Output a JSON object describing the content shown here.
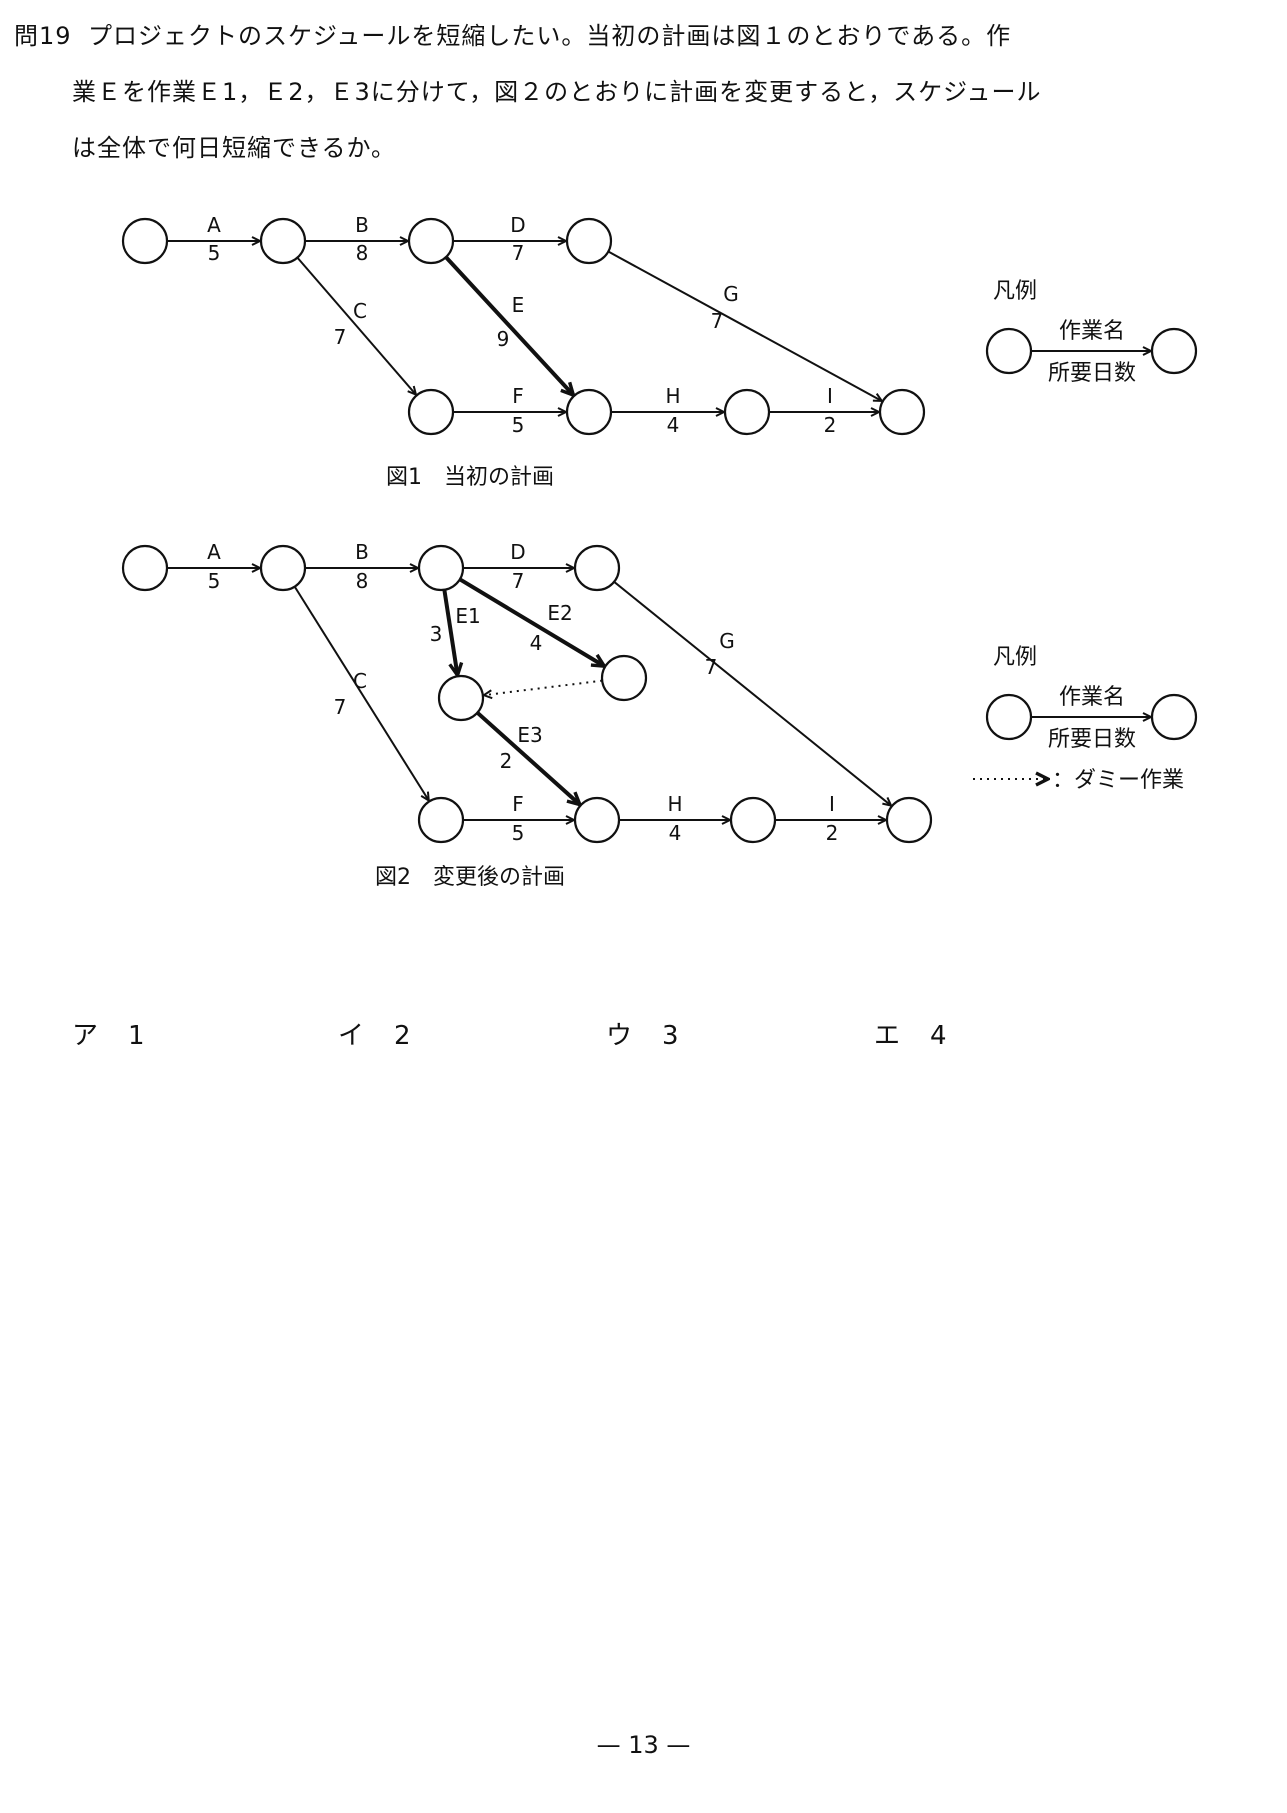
{
  "question": {
    "number": "問19",
    "lines": [
      "プロジェクトのスケジュールを短縮したい。当初の計画は図１のとおりである。作",
      "業Ｅを作業Ｅ1，Ｅ2，Ｅ3に分けて，図２のとおりに計画を変更すると，スケジュール",
      "は全体で何日短縮できるか。"
    ]
  },
  "figure1": {
    "caption": "図1　当初の計画",
    "activities": [
      {
        "id": "A",
        "name": "A",
        "days": "5"
      },
      {
        "id": "B",
        "name": "B",
        "days": "8"
      },
      {
        "id": "C",
        "name": "C",
        "days": "7"
      },
      {
        "id": "D",
        "name": "D",
        "days": "7"
      },
      {
        "id": "E",
        "name": "E",
        "days": "9",
        "bold": true
      },
      {
        "id": "F",
        "name": "F",
        "days": "5"
      },
      {
        "id": "G",
        "name": "G",
        "days": "7"
      },
      {
        "id": "H",
        "name": "H",
        "days": "4"
      },
      {
        "id": "I",
        "name": "I",
        "days": "2"
      }
    ],
    "legend": {
      "title": "凡例",
      "name_label": "作業名",
      "days_label": "所要日数"
    }
  },
  "figure2": {
    "caption": "図2　変更後の計画",
    "activities": [
      {
        "id": "A",
        "name": "A",
        "days": "5"
      },
      {
        "id": "B",
        "name": "B",
        "days": "8"
      },
      {
        "id": "C",
        "name": "C",
        "days": "7"
      },
      {
        "id": "D",
        "name": "D",
        "days": "7"
      },
      {
        "id": "E1",
        "name": "E1",
        "days": "3",
        "bold": true
      },
      {
        "id": "E2",
        "name": "E2",
        "days": "4",
        "bold": true
      },
      {
        "id": "E3",
        "name": "E3",
        "days": "2",
        "bold": true
      },
      {
        "id": "F",
        "name": "F",
        "days": "5"
      },
      {
        "id": "G",
        "name": "G",
        "days": "7"
      },
      {
        "id": "H",
        "name": "H",
        "days": "4"
      },
      {
        "id": "I",
        "name": "I",
        "days": "2"
      }
    ],
    "legend": {
      "title": "凡例",
      "name_label": "作業名",
      "days_label": "所要日数",
      "dummy_label": "：ダミー作業"
    }
  },
  "choices": [
    {
      "label": "ア",
      "value": "1"
    },
    {
      "label": "イ",
      "value": "2"
    },
    {
      "label": "ウ",
      "value": "3"
    },
    {
      "label": "エ",
      "value": "4"
    }
  ],
  "page_number": "— 13 —"
}
